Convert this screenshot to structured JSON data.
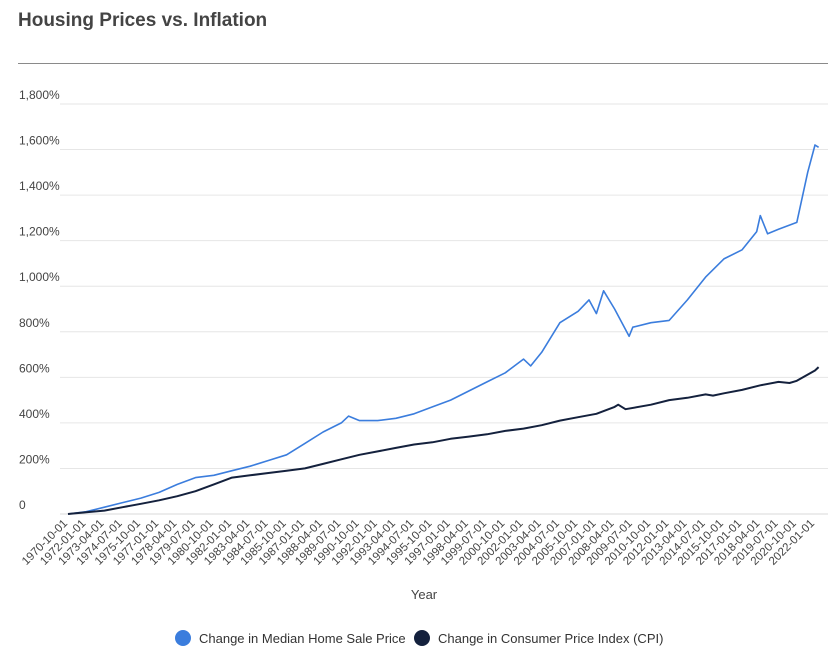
{
  "chart_data": {
    "type": "line",
    "title": "Housing Prices vs. Inflation",
    "xlabel": "Year",
    "ylabel": "",
    "ylim": [
      0,
      1800
    ],
    "y_ticks": [
      0,
      200,
      400,
      600,
      800,
      1000,
      1200,
      1400,
      1600,
      1800
    ],
    "y_tick_labels": [
      "0",
      "200%",
      "400%",
      "600%",
      "800%",
      "1,000%",
      "1,200%",
      "1,400%",
      "1,600%",
      "1,800%"
    ],
    "x_tick_labels": [
      "1970-10-01",
      "1972-01-01",
      "1973-04-01",
      "1974-07-01",
      "1975-10-01",
      "1977-01-01",
      "1978-04-01",
      "1979-07-01",
      "1980-10-01",
      "1982-01-01",
      "1983-04-01",
      "1984-07-01",
      "1985-10-01",
      "1987-01-01",
      "1988-04-01",
      "1989-07-01",
      "1990-10-01",
      "1992-01-01",
      "1993-04-01",
      "1994-07-01",
      "1995-10-01",
      "1997-01-01",
      "1998-04-01",
      "1999-07-01",
      "2000-10-01",
      "2002-01-01",
      "2003-04-01",
      "2004-07-01",
      "2005-10-01",
      "2007-01-01",
      "2008-04-01",
      "2009-07-01",
      "2010-10-01",
      "2012-01-01",
      "2013-04-01",
      "2014-07-01",
      "2015-10-01",
      "2017-01-01",
      "2018-04-01",
      "2019-07-01",
      "2020-10-01",
      "2022-01-01"
    ],
    "grid": true,
    "legend_position": "bottom",
    "series": [
      {
        "name": "Change in Median Home Sale Price",
        "color": "#3b7ddd",
        "x": [
          "1970-10-01",
          "1972-01-01",
          "1973-04-01",
          "1974-07-01",
          "1975-10-01",
          "1977-01-01",
          "1978-04-01",
          "1979-07-01",
          "1980-10-01",
          "1982-01-01",
          "1983-04-01",
          "1984-07-01",
          "1985-10-01",
          "1987-01-01",
          "1988-04-01",
          "1989-07-01",
          "1990-01-01",
          "1990-10-01",
          "1992-01-01",
          "1993-04-01",
          "1994-07-01",
          "1995-10-01",
          "1997-01-01",
          "1998-04-01",
          "1999-07-01",
          "2000-10-01",
          "2002-01-01",
          "2002-07-01",
          "2003-04-01",
          "2004-07-01",
          "2005-10-01",
          "2006-07-01",
          "2007-01-01",
          "2007-07-01",
          "2008-04-01",
          "2009-04-01",
          "2009-07-01",
          "2010-10-01",
          "2012-01-01",
          "2013-04-01",
          "2014-07-01",
          "2015-10-01",
          "2017-01-01",
          "2018-01-01",
          "2018-04-01",
          "2018-10-01",
          "2019-07-01",
          "2020-10-01",
          "2021-07-01",
          "2022-01-01",
          "2022-04-01"
        ],
        "values": [
          0,
          10,
          30,
          50,
          70,
          95,
          130,
          160,
          170,
          190,
          210,
          235,
          260,
          310,
          360,
          400,
          430,
          410,
          410,
          420,
          440,
          470,
          500,
          540,
          580,
          620,
          680,
          650,
          710,
          840,
          890,
          940,
          880,
          980,
          900,
          780,
          820,
          840,
          850,
          940,
          1040,
          1120,
          1160,
          1240,
          1310,
          1230,
          1250,
          1280,
          1500,
          1620,
          1610
        ]
      },
      {
        "name": "Change in Consumer Price Index (CPI)",
        "color": "#14213d",
        "x": [
          "1970-10-01",
          "1972-01-01",
          "1973-04-01",
          "1974-07-01",
          "1975-10-01",
          "1977-01-01",
          "1978-04-01",
          "1979-07-01",
          "1980-10-01",
          "1982-01-01",
          "1983-04-01",
          "1984-07-01",
          "1985-10-01",
          "1987-01-01",
          "1988-04-01",
          "1989-07-01",
          "1990-10-01",
          "1992-01-01",
          "1993-04-01",
          "1994-07-01",
          "1995-10-01",
          "1997-01-01",
          "1998-04-01",
          "1999-07-01",
          "2000-10-01",
          "2002-01-01",
          "2003-04-01",
          "2004-07-01",
          "2005-10-01",
          "2007-01-01",
          "2008-04-01",
          "2008-07-01",
          "2009-01-01",
          "2010-10-01",
          "2012-01-01",
          "2013-04-01",
          "2014-07-01",
          "2015-01-01",
          "2015-10-01",
          "2017-01-01",
          "2018-04-01",
          "2019-07-01",
          "2020-04-01",
          "2020-10-01",
          "2022-01-01",
          "2022-04-01"
        ],
        "values": [
          0,
          8,
          15,
          30,
          45,
          60,
          78,
          100,
          130,
          160,
          170,
          180,
          190,
          200,
          220,
          240,
          260,
          275,
          290,
          305,
          315,
          330,
          340,
          350,
          365,
          375,
          390,
          410,
          425,
          440,
          470,
          480,
          460,
          480,
          500,
          510,
          525,
          520,
          530,
          545,
          565,
          580,
          575,
          585,
          630,
          645
        ]
      }
    ]
  }
}
